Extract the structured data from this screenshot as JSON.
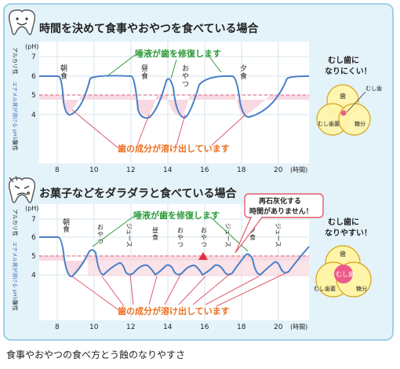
{
  "caption": "食事やおやつの食べ方とう蝕のなりやすさ",
  "colors": {
    "panel_bg": "#e4f3f9",
    "panel_border": "#9fd0e6",
    "curve": "#4a7fc8",
    "critical_line": "#e05a6e",
    "critical_fill": "#f8d9e2",
    "green_text": "#2e9a3a",
    "orange_text": "#ee6d1c",
    "ph_label_blue": "#3467b3",
    "venn_yellow": "#fff5a8",
    "venn_pink": "#ee5a8a",
    "venn_outline": "#d7a51f"
  },
  "icons": {
    "tooth_happy": "tooth-happy-icon",
    "tooth_sad": "tooth-sad-icon",
    "warning_triangle": "warning-triangle-icon"
  },
  "axis_labels": {
    "ph_unit": "(pH)",
    "alkaline": "アルカリ性",
    "critical_ph": "エナメル質が溶ける pH5.5",
    "acidic": "酸性",
    "time_unit": "(時間)"
  },
  "diagram_top": {
    "title": "時間を決めて食事やおやつを食べている場合",
    "y_ticks": [
      "7",
      "6",
      "5",
      "4"
    ],
    "x_ticks": [
      "8",
      "10",
      "12",
      "14",
      "16",
      "18",
      "20"
    ],
    "meal_labels": [
      "朝食",
      "昼食",
      "おやつ",
      "夕食"
    ],
    "green_caption": "唾液が歯を修復します",
    "orange_caption": "歯の成分が溶け出しています",
    "venn_title": "むし歯に なりにくい！",
    "venn_labels": [
      "歯",
      "むし歯",
      "むし歯菌",
      "糖分"
    ]
  },
  "diagram_bottom": {
    "title": "お菓子などをダラダラと食べている場合",
    "y_ticks": [
      "7",
      "6",
      "5",
      "4"
    ],
    "x_ticks": [
      "8",
      "10",
      "12",
      "14",
      "16",
      "18",
      "20"
    ],
    "meal_labels": [
      "朝食",
      "おやつ",
      "ジュース",
      "昼食",
      "おやつ",
      "おやつ",
      "ジュース",
      "夕食",
      "ジュース"
    ],
    "green_caption": "唾液が歯を修復します",
    "orange_caption": "歯の成分が溶け出しています",
    "callout": "再石灰化する 時間がありません！",
    "venn_title": "むし歯に なりやすい！",
    "venn_labels": [
      "歯",
      "むし歯",
      "むし歯菌",
      "糖分"
    ]
  }
}
